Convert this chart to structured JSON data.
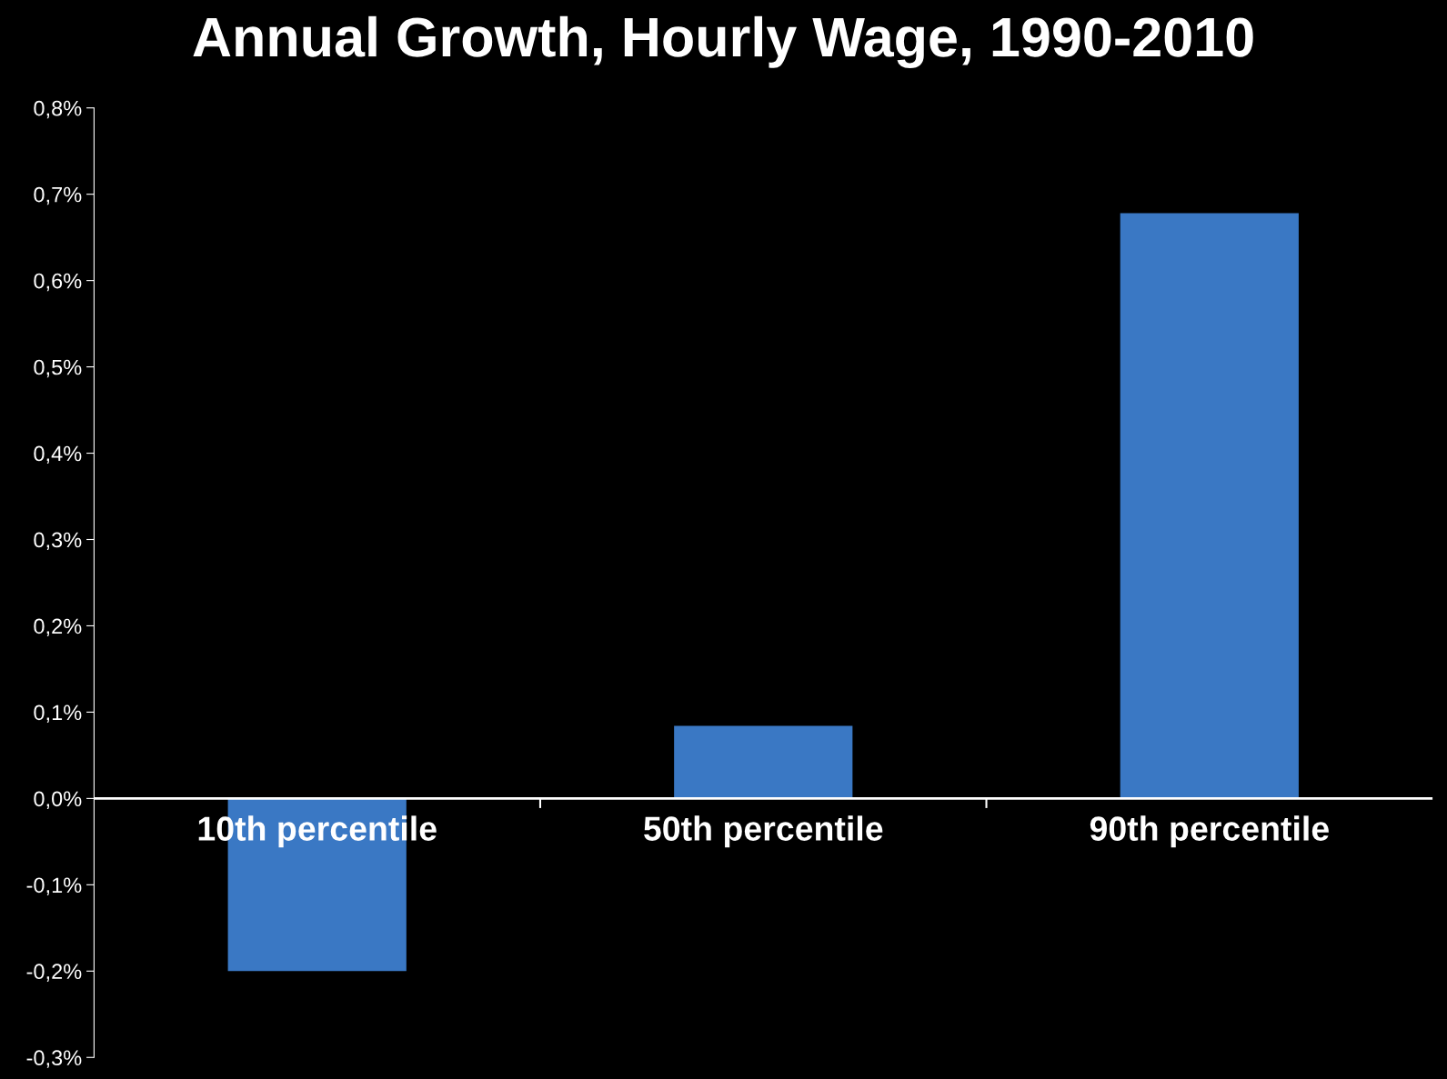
{
  "chart_data": {
    "type": "bar",
    "title": "Annual Growth, Hourly Wage, 1990-2010",
    "categories": [
      "10th percentile",
      "50th percentile",
      "90th percentile"
    ],
    "values": [
      -0.2,
      0.084,
      0.678
    ],
    "color": "#3a78c4",
    "ylim": [
      -0.3,
      0.8
    ],
    "yticks": [
      {
        "value": -0.3,
        "label": "-0,3%"
      },
      {
        "value": -0.2,
        "label": "-0,2%"
      },
      {
        "value": -0.1,
        "label": "-0,1%"
      },
      {
        "value": 0.0,
        "label": "0,0%"
      },
      {
        "value": 0.1,
        "label": "0,1%"
      },
      {
        "value": 0.2,
        "label": "0,2%"
      },
      {
        "value": 0.3,
        "label": "0,3%"
      },
      {
        "value": 0.4,
        "label": "0,4%"
      },
      {
        "value": 0.5,
        "label": "0,5%"
      },
      {
        "value": 0.6,
        "label": "0,6%"
      },
      {
        "value": 0.7,
        "label": "0,7%"
      },
      {
        "value": 0.8,
        "label": "0,8%"
      }
    ],
    "grid": false
  }
}
